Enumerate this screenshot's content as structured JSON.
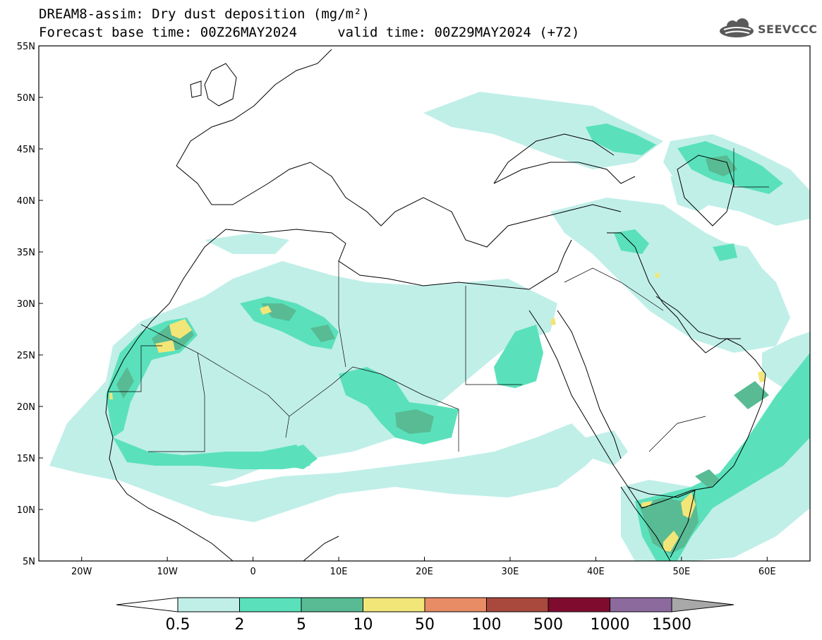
{
  "header": {
    "title": "DREAM8-assim: Dry dust deposition (mg/m²)",
    "subtitle": "Forecast base time: 00Z26MAY2024     valid time: 00Z29MAY2024 (+72)"
  },
  "logo": {
    "text": "SEEVCCC",
    "icon": "cloud-icon",
    "color": "#5a5a5a"
  },
  "map": {
    "lon_range": [
      -25,
      65
    ],
    "lat_range": [
      5,
      55
    ],
    "lat_ticks": [
      "55N",
      "50N",
      "45N",
      "40N",
      "35N",
      "30N",
      "25N",
      "20N",
      "15N",
      "10N",
      "5N"
    ],
    "lon_ticks": [
      "20W",
      "10W",
      "0",
      "10E",
      "20E",
      "30E",
      "40E",
      "50E",
      "60E"
    ]
  },
  "colorbar": {
    "labels": [
      "0.5",
      "2",
      "5",
      "10",
      "50",
      "100",
      "500",
      "1000",
      "1500"
    ],
    "colors": [
      "#c0efe8",
      "#5ae1bb",
      "#58bb94",
      "#f2e679",
      "#e88c66",
      "#a9483d",
      "#7f0c2e",
      "#8c6a9e",
      "#a8a8a8"
    ]
  }
}
